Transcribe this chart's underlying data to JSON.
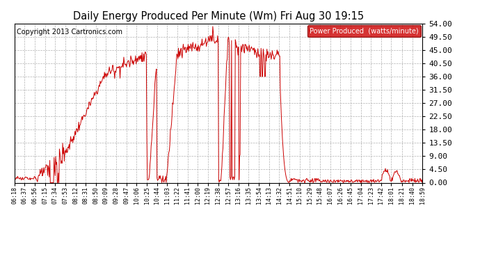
{
  "title": "Daily Energy Produced Per Minute (Wm) Fri Aug 30 19:15",
  "copyright": "Copyright 2013 Cartronics.com",
  "legend_label": "Power Produced  (watts/minute)",
  "legend_bg": "#cc0000",
  "line_color": "#cc0000",
  "bg_color": "#ffffff",
  "grid_color": "#b0b0b0",
  "ylim": [
    0,
    54.0
  ],
  "yticks": [
    0.0,
    4.5,
    9.0,
    13.5,
    18.0,
    22.5,
    27.0,
    31.5,
    36.0,
    40.5,
    45.0,
    49.5,
    54.0
  ],
  "xtick_labels": [
    "06:18",
    "06:37",
    "06:56",
    "07:15",
    "07:34",
    "07:53",
    "08:12",
    "08:31",
    "08:50",
    "09:09",
    "09:28",
    "09:47",
    "10:06",
    "10:25",
    "10:44",
    "11:03",
    "11:22",
    "11:41",
    "12:00",
    "12:19",
    "12:38",
    "12:57",
    "13:16",
    "13:35",
    "13:54",
    "14:13",
    "14:32",
    "14:51",
    "15:10",
    "15:29",
    "15:48",
    "16:07",
    "16:26",
    "16:45",
    "17:04",
    "17:23",
    "17:42",
    "18:01",
    "18:21",
    "18:40",
    "18:59"
  ],
  "figsize": [
    6.9,
    3.75
  ],
  "dpi": 100
}
